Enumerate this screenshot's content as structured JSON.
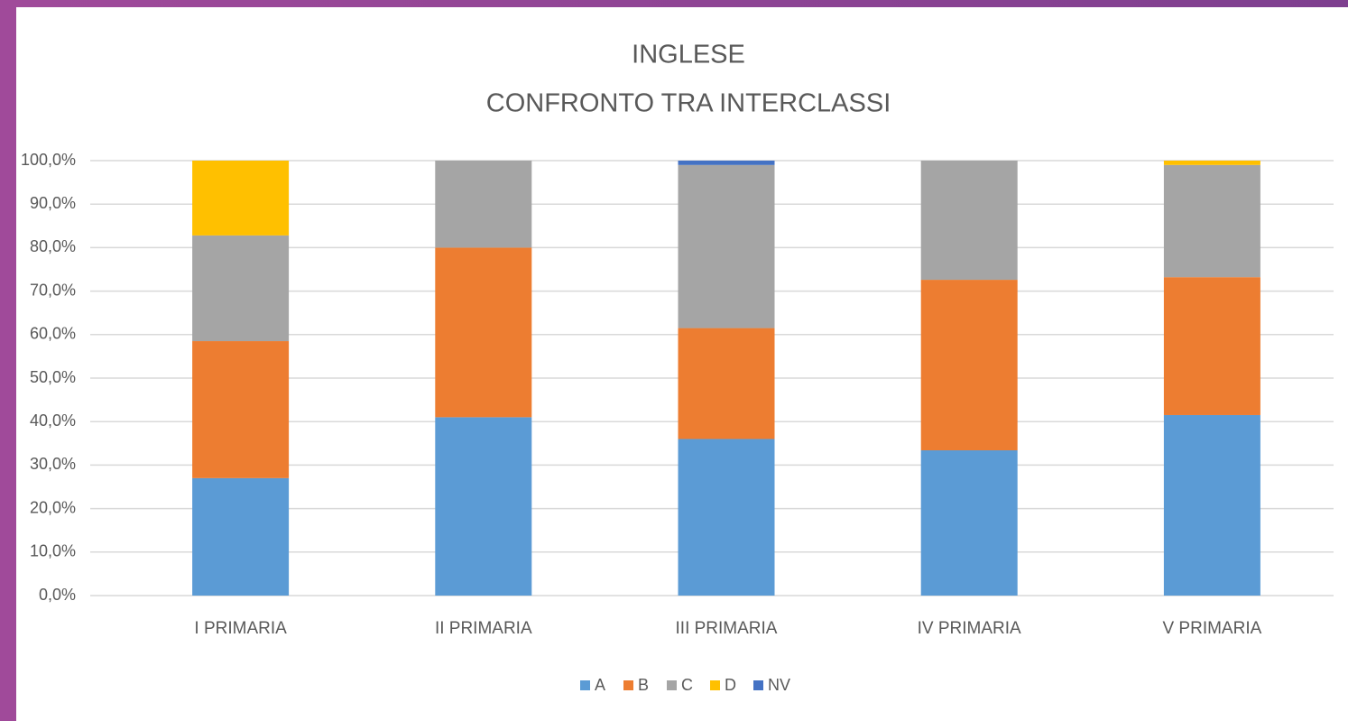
{
  "chart_data": {
    "type": "stacked-bar",
    "title": "INGLESE",
    "subtitle": "CONFRONTO TRA INTERCLASSI",
    "categories": [
      "I PRIMARIA",
      "II PRIMARIA",
      "III PRIMARIA",
      "IV PRIMARIA",
      "V PRIMARIA"
    ],
    "series": [
      {
        "name": "A",
        "color": "#5b9bd5",
        "values": [
          27,
          41,
          36,
          33.4,
          41.5
        ]
      },
      {
        "name": "B",
        "color": "#ed7d31",
        "values": [
          31.5,
          39,
          25.5,
          39.2,
          31.7
        ]
      },
      {
        "name": "C",
        "color": "#a5a5a5",
        "values": [
          24.3,
          20,
          37.5,
          27.4,
          25.8
        ]
      },
      {
        "name": "D",
        "color": "#ffc000",
        "values": [
          17.2,
          0,
          0,
          0,
          1
        ]
      },
      {
        "name": "NV",
        "color": "#4472c4",
        "values": [
          0,
          0,
          1,
          0,
          0
        ]
      }
    ],
    "ylim": [
      0,
      100
    ],
    "yticks": [
      {
        "value": 0,
        "label": "0,0%"
      },
      {
        "value": 10,
        "label": "10,0%"
      },
      {
        "value": 20,
        "label": "20,0%"
      },
      {
        "value": 30,
        "label": "30,0%"
      },
      {
        "value": 40,
        "label": "40,0%"
      },
      {
        "value": 50,
        "label": "50,0%"
      },
      {
        "value": 60,
        "label": "60,0%"
      },
      {
        "value": 70,
        "label": "70,0%"
      },
      {
        "value": 80,
        "label": "80,0%"
      },
      {
        "value": 90,
        "label": "90,0%"
      },
      {
        "value": 100,
        "label": "100,0%"
      }
    ],
    "grid": true,
    "legend": "bottom"
  }
}
